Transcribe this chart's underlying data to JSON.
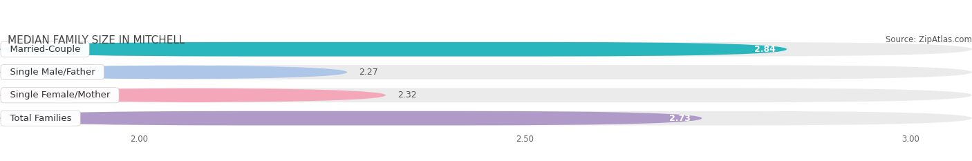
{
  "title": "MEDIAN FAMILY SIZE IN MITCHELL",
  "source": "Source: ZipAtlas.com",
  "categories": [
    "Married-Couple",
    "Single Male/Father",
    "Single Female/Mother",
    "Total Families"
  ],
  "values": [
    2.84,
    2.27,
    2.32,
    2.73
  ],
  "bar_colors": [
    "#29b6bc",
    "#aec6e8",
    "#f4a7b9",
    "#b09ac8"
  ],
  "x_min": 1.82,
  "x_max": 3.08,
  "xticks": [
    2.0,
    2.5,
    3.0
  ],
  "xtick_labels": [
    "2.00",
    "2.50",
    "3.00"
  ],
  "label_fontsize": 9.5,
  "value_fontsize": 9.0,
  "title_fontsize": 11,
  "source_fontsize": 8.5,
  "bar_height": 0.62,
  "background_color": "#ffffff",
  "bar_bg_color": "#ebebeb"
}
